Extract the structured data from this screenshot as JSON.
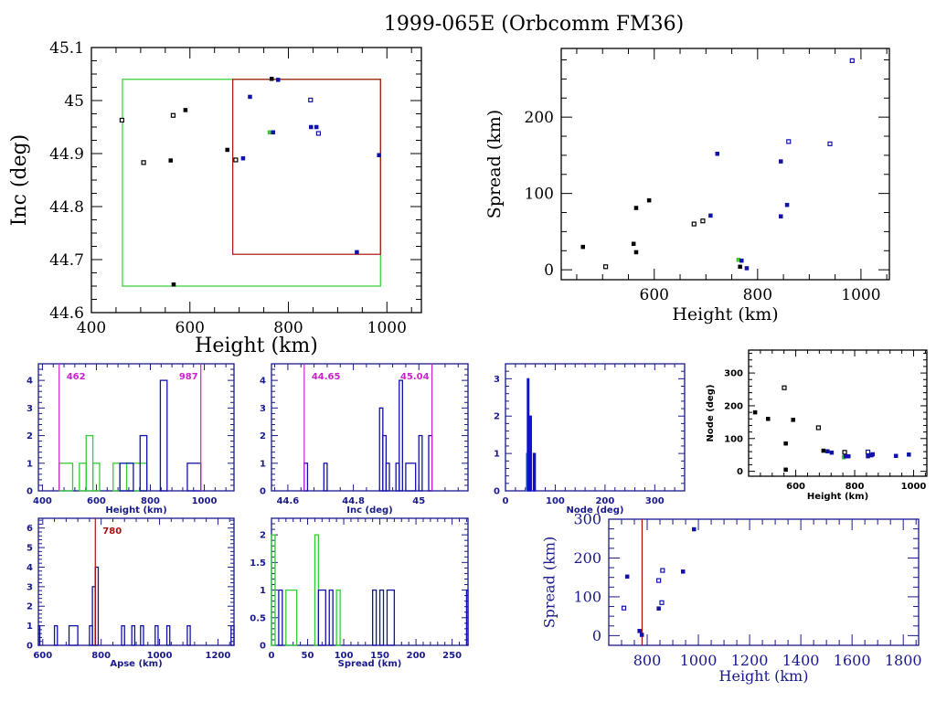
{
  "title": "1999-065E (Orbcomm FM36)",
  "chart_data": [
    {
      "id": "inc-vs-height",
      "type": "scatter",
      "xlabel": "Height (km)",
      "ylabel": "Inc (deg)",
      "xlim": [
        400,
        1070
      ],
      "ylim": [
        44.6,
        45.1
      ],
      "xticks": [
        400,
        600,
        800,
        1000
      ],
      "yticks": [
        44.6,
        44.7,
        44.8,
        44.9,
        45,
        45.1
      ],
      "ytick_labels": [
        "44.6",
        "44.7",
        "44.8",
        "44.9",
        "45",
        "45.1"
      ],
      "boxes": [
        {
          "name": "green-range-box",
          "color": "#33cc33",
          "x": [
            463,
            987
          ],
          "y": [
            44.65,
            45.04
          ]
        },
        {
          "name": "red-range-box",
          "color": "#aa1111",
          "x": [
            687,
            987
          ],
          "y": [
            44.71,
            45.04
          ]
        }
      ],
      "points": [
        {
          "x": 462,
          "y": 44.963,
          "color": "#000000",
          "open": true
        },
        {
          "x": 506,
          "y": 44.883,
          "color": "#000000",
          "open": true
        },
        {
          "x": 561,
          "y": 44.887,
          "color": "#000000",
          "open": false
        },
        {
          "x": 566,
          "y": 44.972,
          "color": "#000000",
          "open": true
        },
        {
          "x": 567,
          "y": 44.653,
          "color": "#000000",
          "open": false
        },
        {
          "x": 591,
          "y": 44.982,
          "color": "#000000",
          "open": false
        },
        {
          "x": 676,
          "y": 44.907,
          "color": "#000000",
          "open": false
        },
        {
          "x": 693,
          "y": 44.888,
          "color": "#000000",
          "open": true
        },
        {
          "x": 708,
          "y": 44.891,
          "color": "#1111aa",
          "open": false
        },
        {
          "x": 722,
          "y": 45.007,
          "color": "#1111aa",
          "open": false
        },
        {
          "x": 762,
          "y": 44.94,
          "color": "#33cc33",
          "open": false
        },
        {
          "x": 769,
          "y": 44.94,
          "color": "#1111aa",
          "open": false
        },
        {
          "x": 766,
          "y": 45.041,
          "color": "#000000",
          "open": false
        },
        {
          "x": 779,
          "y": 45.039,
          "color": "#1111aa",
          "open": false
        },
        {
          "x": 845,
          "y": 45.001,
          "color": "#1111aa",
          "open": true
        },
        {
          "x": 846,
          "y": 44.95,
          "color": "#1111aa",
          "open": false
        },
        {
          "x": 857,
          "y": 44.95,
          "color": "#1111aa",
          "open": false
        },
        {
          "x": 861,
          "y": 44.938,
          "color": "#1111aa",
          "open": true
        },
        {
          "x": 939,
          "y": 44.714,
          "color": "#1111aa",
          "open": false
        },
        {
          "x": 984,
          "y": 44.897,
          "color": "#1111aa",
          "open": false
        }
      ]
    },
    {
      "id": "spread-vs-height",
      "type": "scatter",
      "xlabel": "Height (km)",
      "ylabel": "Spread (km)",
      "xlim": [
        420,
        1055
      ],
      "ylim": [
        -13,
        290
      ],
      "xticks": [
        600,
        800,
        1000
      ],
      "yticks": [
        0,
        100,
        200
      ],
      "points": [
        {
          "x": 462,
          "y": 30,
          "color": "#000000",
          "open": false
        },
        {
          "x": 506,
          "y": 4,
          "color": "#000000",
          "open": true
        },
        {
          "x": 560,
          "y": 34,
          "color": "#000000",
          "open": false
        },
        {
          "x": 565,
          "y": 23,
          "color": "#000000",
          "open": false
        },
        {
          "x": 565,
          "y": 81,
          "color": "#000000",
          "open": false
        },
        {
          "x": 590,
          "y": 91,
          "color": "#000000",
          "open": false
        },
        {
          "x": 677,
          "y": 60,
          "color": "#000000",
          "open": true
        },
        {
          "x": 694,
          "y": 64,
          "color": "#000000",
          "open": true
        },
        {
          "x": 709,
          "y": 71,
          "color": "#1111aa",
          "open": false
        },
        {
          "x": 722,
          "y": 152,
          "color": "#1111aa",
          "open": false
        },
        {
          "x": 763,
          "y": 13,
          "color": "#33cc33",
          "open": false
        },
        {
          "x": 766,
          "y": 4,
          "color": "#000000",
          "open": false
        },
        {
          "x": 769,
          "y": 12,
          "color": "#1111aa",
          "open": false
        },
        {
          "x": 779,
          "y": 2,
          "color": "#1111aa",
          "open": false
        },
        {
          "x": 845,
          "y": 142,
          "color": "#1111aa",
          "open": false
        },
        {
          "x": 845,
          "y": 70,
          "color": "#1111aa",
          "open": false
        },
        {
          "x": 857,
          "y": 85,
          "color": "#1111aa",
          "open": false
        },
        {
          "x": 860,
          "y": 168,
          "color": "#1111aa",
          "open": true
        },
        {
          "x": 940,
          "y": 165,
          "color": "#1111aa",
          "open": true
        },
        {
          "x": 983,
          "y": 274,
          "color": "#1111aa",
          "open": true
        }
      ]
    },
    {
      "id": "height-histogram",
      "type": "bar",
      "xlabel": "Height (km)",
      "ylabel": "",
      "xlim": [
        385,
        1110
      ],
      "ylim": [
        0,
        4.6
      ],
      "xticks": [
        400,
        600,
        800,
        1000
      ],
      "yticks": [
        0,
        1,
        2,
        3,
        4
      ],
      "markers": [
        {
          "value": 462,
          "label": "462",
          "color": "#cc22cc"
        },
        {
          "value": 987,
          "label": "987",
          "color": "#cc22cc"
        }
      ],
      "series": [
        {
          "name": "green",
          "color": "#33cc33",
          "bins": [
            {
              "x0": 462,
              "x1": 512,
              "v": 1
            },
            {
              "x0": 537,
              "x1": 562,
              "v": 1
            },
            {
              "x0": 562,
              "x1": 587,
              "v": 2
            },
            {
              "x0": 587,
              "x1": 612,
              "v": 1
            },
            {
              "x0": 662,
              "x1": 687,
              "v": 1
            },
            {
              "x0": 712,
              "x1": 787,
              "v": 1
            }
          ]
        },
        {
          "name": "blue",
          "color": "#1111aa",
          "bins": [
            {
              "x0": 687,
              "x1": 737,
              "v": 1
            },
            {
              "x0": 762,
              "x1": 787,
              "v": 2
            },
            {
              "x0": 837,
              "x1": 862,
              "v": 4
            },
            {
              "x0": 937,
              "x1": 987,
              "v": 1
            }
          ]
        }
      ]
    },
    {
      "id": "inc-histogram",
      "type": "bar",
      "xlabel": "Inc (deg)",
      "ylabel": "",
      "xlim": [
        44.55,
        45.15
      ],
      "ylim": [
        0,
        4.6
      ],
      "xticks": [
        44.6,
        44.8,
        45
      ],
      "xtick_labels": [
        "44.6",
        "44.8",
        "45"
      ],
      "yticks": [
        0,
        1,
        2,
        3,
        4
      ],
      "markers": [
        {
          "value": 44.65,
          "label": "44.65",
          "color": "#cc22cc"
        },
        {
          "value": 45.04,
          "label": "45.04",
          "color": "#cc22cc"
        }
      ],
      "series": [
        {
          "name": "blue",
          "color": "#1111aa",
          "bins": [
            {
              "x0": 44.65,
              "x1": 44.66,
              "v": 1
            },
            {
              "x0": 44.71,
              "x1": 44.72,
              "v": 1
            },
            {
              "x0": 44.88,
              "x1": 44.89,
              "v": 3
            },
            {
              "x0": 44.89,
              "x1": 44.9,
              "v": 2
            },
            {
              "x0": 44.9,
              "x1": 44.91,
              "v": 1
            },
            {
              "x0": 44.93,
              "x1": 44.94,
              "v": 1
            },
            {
              "x0": 44.94,
              "x1": 44.95,
              "v": 4
            },
            {
              "x0": 44.96,
              "x1": 44.99,
              "v": 1
            },
            {
              "x0": 45.0,
              "x1": 45.01,
              "v": 2
            },
            {
              "x0": 45.03,
              "x1": 45.04,
              "v": 2
            }
          ]
        }
      ]
    },
    {
      "id": "node-histogram",
      "type": "bar",
      "xlabel": "Node (deg)",
      "ylabel": "",
      "xlim": [
        0,
        360
      ],
      "ylim": [
        0,
        3.4
      ],
      "xticks": [
        0,
        100,
        200,
        300
      ],
      "yticks": [
        0,
        1,
        2,
        3
      ],
      "series": [
        {
          "name": "cyan",
          "color": "#22aaaa",
          "bins": [
            {
              "x0": 42,
              "x1": 44,
              "v": 1
            }
          ]
        },
        {
          "name": "blue",
          "color": "#1111cc",
          "bins": [
            {
              "x0": 44,
              "x1": 47,
              "v": 3
            },
            {
              "x0": 47,
              "x1": 49,
              "v": 1
            },
            {
              "x0": 49,
              "x1": 52,
              "v": 2
            },
            {
              "x0": 56,
              "x1": 58,
              "v": 1
            },
            {
              "x0": 58,
              "x1": 60,
              "v": 1
            }
          ]
        }
      ]
    },
    {
      "id": "node-vs-height",
      "type": "scatter",
      "xlabel": "Height (km)",
      "ylabel": "Node (deg)",
      "xlim": [
        440,
        1045
      ],
      "ylim": [
        -15,
        370
      ],
      "xticks": [
        600,
        800,
        1000
      ],
      "yticks": [
        0,
        100,
        200,
        300
      ],
      "points": [
        {
          "x": 462,
          "y": 180,
          "color": "#000000",
          "open": false
        },
        {
          "x": 506,
          "y": 160,
          "color": "#000000",
          "open": false
        },
        {
          "x": 561,
          "y": 255,
          "color": "#000000",
          "open": true
        },
        {
          "x": 566,
          "y": 85,
          "color": "#000000",
          "open": false
        },
        {
          "x": 566,
          "y": 5,
          "color": "#000000",
          "open": false
        },
        {
          "x": 591,
          "y": 157,
          "color": "#000000",
          "open": false
        },
        {
          "x": 677,
          "y": 133,
          "color": "#000000",
          "open": true
        },
        {
          "x": 694,
          "y": 63,
          "color": "#000000",
          "open": false
        },
        {
          "x": 708,
          "y": 61,
          "color": "#1111aa",
          "open": false
        },
        {
          "x": 722,
          "y": 57,
          "color": "#1111aa",
          "open": false
        },
        {
          "x": 766,
          "y": 58,
          "color": "#000000",
          "open": true
        },
        {
          "x": 763,
          "y": 43,
          "color": "#33cc33",
          "open": false
        },
        {
          "x": 769,
          "y": 46,
          "color": "#1111aa",
          "open": false
        },
        {
          "x": 779,
          "y": 46,
          "color": "#1111aa",
          "open": false
        },
        {
          "x": 845,
          "y": 59,
          "color": "#1111aa",
          "open": true
        },
        {
          "x": 845,
          "y": 46,
          "color": "#1111aa",
          "open": false
        },
        {
          "x": 857,
          "y": 49,
          "color": "#1111aa",
          "open": false
        },
        {
          "x": 861,
          "y": 52,
          "color": "#1111aa",
          "open": false
        },
        {
          "x": 940,
          "y": 47,
          "color": "#1111aa",
          "open": false
        },
        {
          "x": 984,
          "y": 51,
          "color": "#1111aa",
          "open": false
        }
      ]
    },
    {
      "id": "apse-histogram",
      "type": "bar",
      "xlabel": "Apse (km)",
      "ylabel": "",
      "xlim": [
        585,
        1255
      ],
      "ylim": [
        0,
        6.5
      ],
      "xticks": [
        600,
        800,
        1000,
        1200
      ],
      "yticks": [
        0,
        1,
        2,
        3,
        4,
        5,
        6
      ],
      "markers": [
        {
          "value": 780,
          "label": "780",
          "color": "#aa1111"
        }
      ],
      "series": [
        {
          "name": "blue",
          "color": "#1111aa",
          "bins": [
            {
              "x0": 585,
              "x1": 590,
              "v": 1
            },
            {
              "x0": 640,
              "x1": 650,
              "v": 1
            },
            {
              "x0": 690,
              "x1": 720,
              "v": 1
            },
            {
              "x0": 760,
              "x1": 770,
              "v": 1
            },
            {
              "x0": 770,
              "x1": 780,
              "v": 3
            },
            {
              "x0": 780,
              "x1": 790,
              "v": 4
            },
            {
              "x0": 870,
              "x1": 880,
              "v": 1
            },
            {
              "x0": 905,
              "x1": 915,
              "v": 1
            },
            {
              "x0": 935,
              "x1": 945,
              "v": 1
            },
            {
              "x0": 985,
              "x1": 995,
              "v": 1
            },
            {
              "x0": 1025,
              "x1": 1035,
              "v": 1
            },
            {
              "x0": 1095,
              "x1": 1105,
              "v": 1
            },
            {
              "x0": 1245,
              "x1": 1255,
              "v": 1
            }
          ]
        }
      ]
    },
    {
      "id": "spread-histogram",
      "type": "bar",
      "xlabel": "Spread (km)",
      "ylabel": "",
      "xlim": [
        0,
        272
      ],
      "ylim": [
        0,
        2.3
      ],
      "xticks": [
        0,
        50,
        100,
        150,
        200,
        250
      ],
      "yticks": [
        0,
        0.5,
        1,
        1.5,
        2
      ],
      "ytick_labels": [
        "0",
        "0.5",
        "1",
        "1.5",
        "2"
      ],
      "series": [
        {
          "name": "green",
          "color": "#33cc33",
          "bins": [
            {
              "x0": 0,
              "x1": 5,
              "v": 2
            },
            {
              "x0": 20,
              "x1": 35,
              "v": 1
            },
            {
              "x0": 60,
              "x1": 65,
              "v": 2
            },
            {
              "x0": 90,
              "x1": 95,
              "v": 1
            }
          ]
        },
        {
          "name": "blue",
          "color": "#1111aa",
          "bins": [
            {
              "x0": 10,
              "x1": 15,
              "v": 1
            },
            {
              "x0": 65,
              "x1": 75,
              "v": 1
            },
            {
              "x0": 80,
              "x1": 85,
              "v": 1
            },
            {
              "x0": 140,
              "x1": 145,
              "v": 1
            },
            {
              "x0": 150,
              "x1": 155,
              "v": 1
            },
            {
              "x0": 160,
              "x1": 170,
              "v": 1
            },
            {
              "x0": 270,
              "x1": 272,
              "v": 1
            }
          ]
        }
      ]
    },
    {
      "id": "spread-vs-height-wide",
      "type": "scatter",
      "xlabel": "Height (km)",
      "ylabel": "Spread (km)",
      "xlim": [
        650,
        1860
      ],
      "ylim": [
        -25,
        300
      ],
      "xticks": [
        800,
        1000,
        1200,
        1400,
        1600,
        1800
      ],
      "yticks": [
        0,
        100,
        200,
        300
      ],
      "markers": [
        {
          "value": 780,
          "label": "",
          "color": "#aa1111"
        }
      ],
      "points": [
        {
          "x": 722,
          "y": 152,
          "color": "#1111aa",
          "open": false
        },
        {
          "x": 709,
          "y": 71,
          "color": "#1111aa",
          "open": true
        },
        {
          "x": 770,
          "y": 12,
          "color": "#1111aa",
          "open": false
        },
        {
          "x": 779,
          "y": 2,
          "color": "#1111aa",
          "open": false
        },
        {
          "x": 845,
          "y": 142,
          "color": "#1111aa",
          "open": true
        },
        {
          "x": 845,
          "y": 70,
          "color": "#1111aa",
          "open": false
        },
        {
          "x": 857,
          "y": 85,
          "color": "#1111aa",
          "open": true
        },
        {
          "x": 860,
          "y": 168,
          "color": "#1111aa",
          "open": true
        },
        {
          "x": 940,
          "y": 165,
          "color": "#1111aa",
          "open": false
        },
        {
          "x": 983,
          "y": 274,
          "color": "#1111aa",
          "open": false
        }
      ]
    }
  ]
}
